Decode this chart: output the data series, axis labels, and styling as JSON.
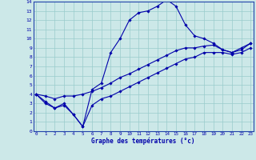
{
  "xlabel": "Graphe des températures (°c)",
  "bg_color": "#cce8e8",
  "line_color": "#0000aa",
  "grid_color": "#99cccc",
  "xlim_min": -0.3,
  "xlim_max": 23.3,
  "ylim_min": 0,
  "ylim_max": 14,
  "xticks": [
    0,
    1,
    2,
    3,
    4,
    5,
    6,
    7,
    8,
    9,
    10,
    11,
    12,
    13,
    14,
    15,
    16,
    17,
    18,
    19,
    20,
    21,
    22,
    23
  ],
  "yticks": [
    0,
    1,
    2,
    3,
    4,
    5,
    6,
    7,
    8,
    9,
    10,
    11,
    12,
    13,
    14
  ],
  "line1_x": [
    0,
    1,
    2,
    3,
    4,
    5,
    6,
    7,
    8,
    9,
    10,
    11,
    12,
    13,
    14,
    15,
    16,
    17,
    18,
    19,
    20,
    21,
    22,
    23
  ],
  "line1_y": [
    4.0,
    3.2,
    2.5,
    3.0,
    1.8,
    0.5,
    4.5,
    5.2,
    8.5,
    10.0,
    12.0,
    12.8,
    13.0,
    13.5,
    14.2,
    13.5,
    11.5,
    10.3,
    10.0,
    9.5,
    8.8,
    8.5,
    9.0,
    9.5
  ],
  "line2_x": [
    0,
    1,
    2,
    3,
    4,
    5,
    6,
    7,
    8,
    9,
    10,
    11,
    12,
    13,
    14,
    15,
    16,
    17,
    18,
    19,
    20,
    21,
    22,
    23
  ],
  "line2_y": [
    4.0,
    3.8,
    3.5,
    3.8,
    3.8,
    4.0,
    4.3,
    4.7,
    5.2,
    5.8,
    6.2,
    6.7,
    7.2,
    7.7,
    8.2,
    8.7,
    9.0,
    9.0,
    9.2,
    9.3,
    8.8,
    8.5,
    8.8,
    9.5
  ],
  "line3_x": [
    0,
    1,
    2,
    3,
    4,
    5,
    6,
    7,
    8,
    9,
    10,
    11,
    12,
    13,
    14,
    15,
    16,
    17,
    18,
    19,
    20,
    21,
    22,
    23
  ],
  "line3_y": [
    4.0,
    3.0,
    2.5,
    2.8,
    1.8,
    0.5,
    2.8,
    3.5,
    3.8,
    4.3,
    4.8,
    5.3,
    5.8,
    6.3,
    6.8,
    7.3,
    7.8,
    8.0,
    8.5,
    8.5,
    8.5,
    8.3,
    8.5,
    9.0
  ]
}
